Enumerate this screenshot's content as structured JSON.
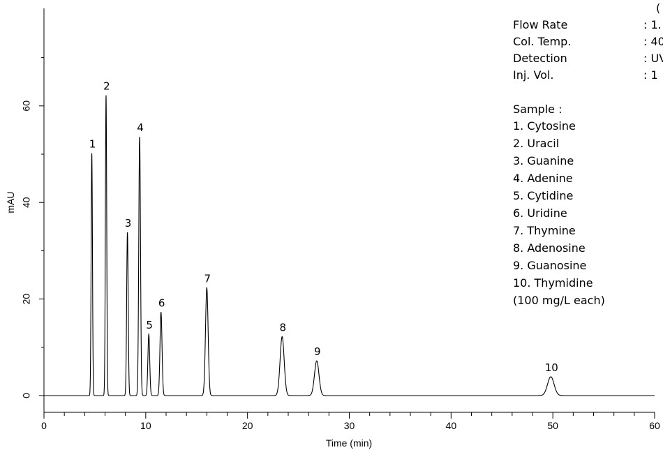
{
  "chart_data": {
    "type": "line",
    "title": "",
    "xlabel": "Time (min)",
    "ylabel": "mAU",
    "xlim": [
      0,
      60
    ],
    "ylim": [
      -3,
      80
    ],
    "x_ticks": [
      0,
      10,
      20,
      30,
      40,
      50,
      60
    ],
    "y_ticks": [
      0,
      20,
      40,
      60
    ],
    "grid": false,
    "baseline": 0,
    "series": [
      {
        "peaks": [
          {
            "label": "1",
            "time": 4.7,
            "height": 50.2,
            "sigma": 0.065
          },
          {
            "label": "2",
            "time": 6.1,
            "height": 62.2,
            "sigma": 0.065
          },
          {
            "label": "3",
            "time": 8.2,
            "height": 33.8,
            "sigma": 0.075
          },
          {
            "label": "4",
            "time": 9.4,
            "height": 53.6,
            "sigma": 0.085
          },
          {
            "label": "5",
            "time": 10.3,
            "height": 12.7,
            "sigma": 0.09
          },
          {
            "label": "6",
            "time": 11.5,
            "height": 17.3,
            "sigma": 0.1
          },
          {
            "label": "7",
            "time": 16.0,
            "height": 22.3,
            "sigma": 0.13
          },
          {
            "label": "8",
            "time": 23.4,
            "height": 12.2,
            "sigma": 0.2
          },
          {
            "label": "9",
            "time": 26.8,
            "height": 7.2,
            "sigma": 0.22
          },
          {
            "label": "10",
            "time": 49.8,
            "height": 3.9,
            "sigma": 0.32
          }
        ]
      }
    ]
  },
  "conditions": {
    "header": "(",
    "rows": [
      {
        "label": "Flow Rate",
        "value": ": 1."
      },
      {
        "label": "Col. Temp.",
        "value": ": 40"
      },
      {
        "label": "Detection",
        "value": ": UV"
      },
      {
        "label": "Inj. Vol.",
        "value": ": 1"
      }
    ]
  },
  "sample_legend": {
    "heading": "Sample :",
    "items": [
      "1. Cytosine",
      "2. Uracil",
      "3. Guanine",
      "4. Adenine",
      "5. Cytidine",
      "6. Uridine",
      "7. Thymine",
      "8. Adenosine",
      "9. Guanosine",
      "10. Thymidine"
    ],
    "note": "(100 mg/L each)"
  }
}
